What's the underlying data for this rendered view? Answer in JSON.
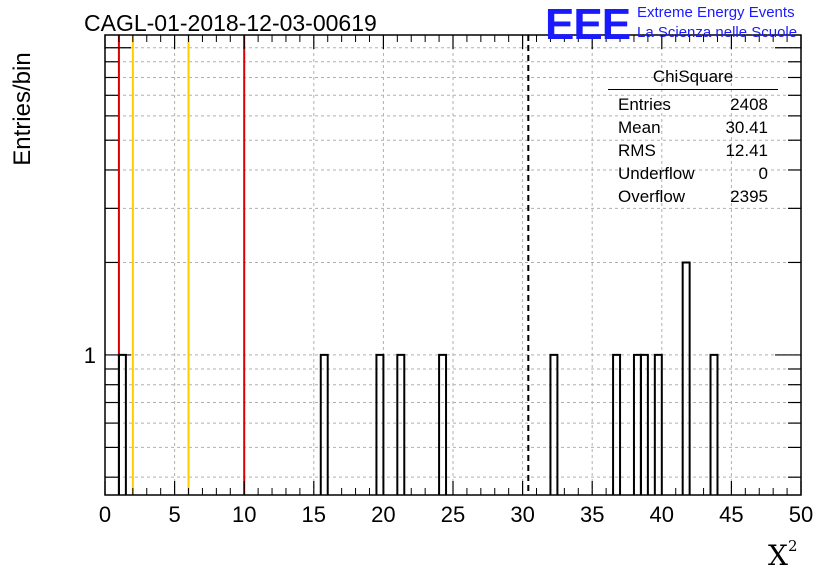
{
  "title": "CAGL-01-2018-12-03-00619",
  "logo": {
    "mark": "EEE",
    "line1": "Extreme Energy Events",
    "line2": "La Scienza nelle Scuole",
    "color": "#1a1aff"
  },
  "axes": {
    "ylabel": "Entries/bin",
    "xlabel": "X",
    "xlabel_sup": "2"
  },
  "stats": {
    "name": "ChiSquare",
    "rows": [
      {
        "label": "Entries",
        "value": "2408"
      },
      {
        "label": "Mean",
        "value": "30.41"
      },
      {
        "label": "RMS",
        "value": "12.41"
      },
      {
        "label": "Underflow",
        "value": "0"
      },
      {
        "label": "Overflow",
        "value": "2395"
      }
    ]
  },
  "chart_data": {
    "type": "bar",
    "title": "CAGL-01-2018-12-03-00619",
    "xlabel": "X²",
    "ylabel": "Entries/bin",
    "xlim": [
      0,
      50
    ],
    "ylim": [
      0.35,
      11
    ],
    "y_scale": "log",
    "bin_width": 0.5,
    "x_ticks": [
      0,
      5,
      10,
      15,
      20,
      25,
      30,
      35,
      40,
      45,
      50
    ],
    "y_tick_labels": [
      {
        "value": 1,
        "label": "1"
      }
    ],
    "grid": true,
    "bins": [
      {
        "x": 1.0,
        "count": 1
      },
      {
        "x": 15.5,
        "count": 1
      },
      {
        "x": 19.5,
        "count": 1
      },
      {
        "x": 21.0,
        "count": 1
      },
      {
        "x": 24.0,
        "count": 1
      },
      {
        "x": 32.0,
        "count": 1
      },
      {
        "x": 36.5,
        "count": 1
      },
      {
        "x": 38.0,
        "count": 1
      },
      {
        "x": 38.5,
        "count": 1
      },
      {
        "x": 39.5,
        "count": 1
      },
      {
        "x": 41.5,
        "count": 2
      },
      {
        "x": 43.5,
        "count": 1
      }
    ],
    "vertical_lines": [
      {
        "x": 1,
        "color": "#dd0000",
        "style": "solid"
      },
      {
        "x": 2,
        "color": "#ffcc00",
        "style": "solid"
      },
      {
        "x": 6,
        "color": "#ffcc00",
        "style": "solid"
      },
      {
        "x": 10,
        "color": "#dd0000",
        "style": "solid"
      },
      {
        "x": 30.41,
        "color": "#000000",
        "style": "dashed"
      }
    ]
  }
}
